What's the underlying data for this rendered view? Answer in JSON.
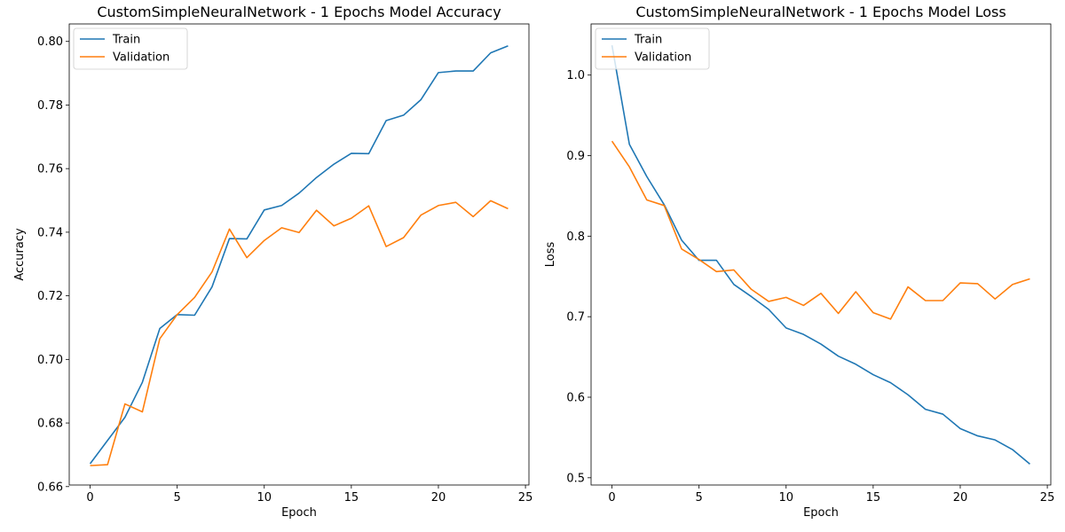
{
  "chart_data": [
    {
      "type": "line",
      "title": "CustomSimpleNeuralNetwork - 1 Epochs Model Accuracy",
      "xlabel": "Epoch",
      "ylabel": "Accuracy",
      "xlim": [
        -1.2,
        25.2
      ],
      "ylim": [
        0.6605,
        0.8055
      ],
      "xticks": [
        0,
        5,
        10,
        15,
        20,
        25
      ],
      "xtick_labels": [
        "0",
        "5",
        "10",
        "15",
        "20",
        "25"
      ],
      "yticks": [
        0.66,
        0.68,
        0.7,
        0.72,
        0.74,
        0.76,
        0.78,
        0.8
      ],
      "ytick_labels": [
        "0.66",
        "0.68",
        "0.70",
        "0.72",
        "0.74",
        "0.76",
        "0.78",
        "0.80"
      ],
      "grid": false,
      "legend": "upper-left",
      "x": [
        0,
        1,
        2,
        3,
        4,
        5,
        6,
        7,
        8,
        9,
        10,
        11,
        12,
        13,
        14,
        15,
        16,
        17,
        18,
        19,
        20,
        21,
        22,
        23,
        24
      ],
      "series": [
        {
          "name": "Train",
          "color": "#1f77b4",
          "values": [
            0.6672,
            0.6745,
            0.6818,
            0.6928,
            0.7097,
            0.7141,
            0.7139,
            0.7228,
            0.738,
            0.7379,
            0.747,
            0.7484,
            0.7523,
            0.7572,
            0.7614,
            0.7648,
            0.7647,
            0.7751,
            0.7768,
            0.7817,
            0.7902,
            0.7907,
            0.7907,
            0.7964,
            0.7986
          ]
        },
        {
          "name": "Validation",
          "color": "#ff7f0e",
          "values": [
            0.6666,
            0.6669,
            0.686,
            0.6835,
            0.7065,
            0.7141,
            0.7195,
            0.7275,
            0.741,
            0.732,
            0.7374,
            0.7414,
            0.7399,
            0.7469,
            0.742,
            0.7444,
            0.7483,
            0.7355,
            0.7383,
            0.7454,
            0.7484,
            0.7494,
            0.7449,
            0.7499,
            0.7474
          ]
        }
      ]
    },
    {
      "type": "line",
      "title": "CustomSimpleNeuralNetwork - 1 Epochs Model Loss",
      "xlabel": "Epoch",
      "ylabel": "Loss",
      "xlim": [
        -1.2,
        25.2
      ],
      "ylim": [
        0.491,
        1.0635
      ],
      "xticks": [
        0,
        5,
        10,
        15,
        20,
        25
      ],
      "xtick_labels": [
        "0",
        "5",
        "10",
        "15",
        "20",
        "25"
      ],
      "yticks": [
        0.5,
        0.6,
        0.7,
        0.8,
        0.9,
        1.0
      ],
      "ytick_labels": [
        "0.5",
        "0.6",
        "0.7",
        "0.8",
        "0.9",
        "1.0"
      ],
      "grid": false,
      "legend": "upper-left",
      "x": [
        0,
        1,
        2,
        3,
        4,
        5,
        6,
        7,
        8,
        9,
        10,
        11,
        12,
        13,
        14,
        15,
        16,
        17,
        18,
        19,
        20,
        21,
        22,
        23,
        24
      ],
      "series": [
        {
          "name": "Train",
          "color": "#1f77b4",
          "values": [
            1.037,
            0.914,
            0.874,
            0.839,
            0.795,
            0.77,
            0.77,
            0.74,
            0.725,
            0.709,
            0.686,
            0.678,
            0.666,
            0.651,
            0.641,
            0.628,
            0.618,
            0.603,
            0.585,
            0.579,
            0.561,
            0.552,
            0.547,
            0.535,
            0.517
          ]
        },
        {
          "name": "Validation",
          "color": "#ff7f0e",
          "values": [
            0.918,
            0.886,
            0.845,
            0.838,
            0.784,
            0.771,
            0.756,
            0.758,
            0.734,
            0.719,
            0.724,
            0.714,
            0.729,
            0.704,
            0.731,
            0.705,
            0.697,
            0.737,
            0.72,
            0.72,
            0.742,
            0.741,
            0.722,
            0.74,
            0.747
          ]
        }
      ]
    }
  ]
}
